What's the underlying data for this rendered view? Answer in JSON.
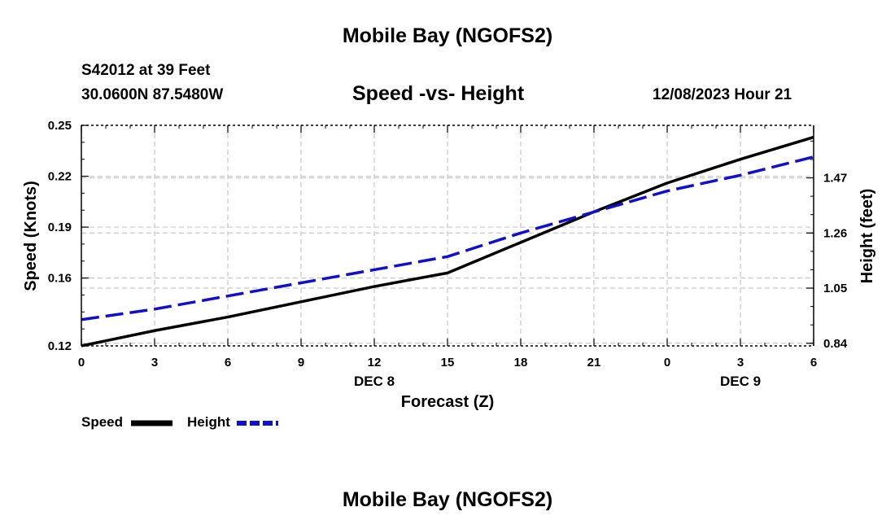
{
  "header": {
    "title": "Mobile Bay (NGOFS2)",
    "station": "S42012 at 39 Feet",
    "coords": "30.0600N  87.5480W",
    "subtitle": "Speed -vs- Height",
    "datetime": "12/08/2023 Hour 21"
  },
  "footer": {
    "title": "Mobile Bay (NGOFS2)"
  },
  "legend": {
    "speed_label": "Speed",
    "height_label": "Height"
  },
  "colors": {
    "speed": "#000000",
    "height": "#1010cc",
    "grid": "#c8c8c8"
  },
  "chart_data": {
    "type": "line",
    "xlabel": "Forecast (Z)",
    "ylabel": "Speed (Knots)",
    "y2label": "Height (feet)",
    "x_hours": [
      0,
      3,
      6,
      9,
      12,
      15,
      18,
      21,
      24,
      27,
      30
    ],
    "x_tick_labels": [
      "0",
      "3",
      "6",
      "9",
      "12",
      "15",
      "18",
      "21",
      "0",
      "3",
      "6"
    ],
    "date_labels": [
      {
        "at": 12,
        "label": "DEC 8"
      },
      {
        "at": 27,
        "label": "DEC 9"
      }
    ],
    "xlim": [
      0,
      30
    ],
    "ylim": [
      0.12,
      0.25
    ],
    "y_ticks": [
      0.12,
      0.16,
      0.19,
      0.22,
      0.25
    ],
    "y_tick_labels": [
      "0.12",
      "0.16",
      "0.19",
      "0.22",
      "0.25"
    ],
    "y2lim": [
      0.83,
      1.67
    ],
    "y2_ticks": [
      0.84,
      1.05,
      1.26,
      1.47
    ],
    "y2_tick_labels": [
      "0.84",
      "1.05",
      "1.26",
      "1.47"
    ],
    "grid": true,
    "series": [
      {
        "name": "Speed",
        "axis": "left",
        "style": "solid",
        "x": [
          0,
          3,
          6,
          9,
          12,
          15,
          18,
          21,
          24,
          27,
          30
        ],
        "y": [
          0.12,
          0.129,
          0.137,
          0.146,
          0.155,
          0.163,
          0.181,
          0.199,
          0.216,
          0.23,
          0.243
        ]
      },
      {
        "name": "Height",
        "axis": "right",
        "style": "dashed",
        "x": [
          0,
          3,
          6,
          9,
          12,
          15,
          18,
          21,
          24,
          27,
          30
        ],
        "y": [
          0.93,
          0.97,
          1.02,
          1.07,
          1.12,
          1.17,
          1.26,
          1.34,
          1.42,
          1.48,
          1.55
        ]
      }
    ]
  }
}
